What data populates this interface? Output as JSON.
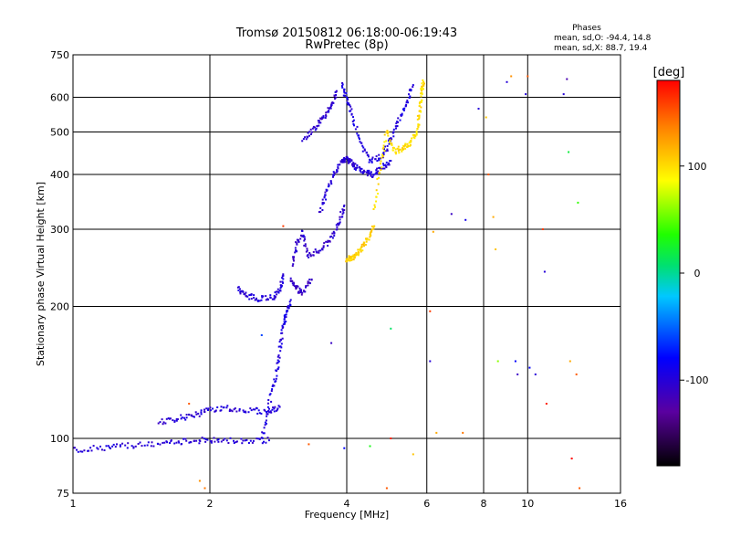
{
  "chart_data": {
    "type": "scatter",
    "title": "Tromsø 20150812 06:18:00-06:19:43",
    "subtitle": "RwPretec (8p)",
    "xlabel": "Frequency [MHz]",
    "ylabel": "Stationary phase Virtual Height [km]",
    "x_scale": "log",
    "y_scale": "log",
    "xlim": [
      1,
      16
    ],
    "ylim": [
      75,
      750
    ],
    "x_ticks": [
      1,
      2,
      4,
      6,
      8,
      10,
      16
    ],
    "y_ticks": [
      75,
      100,
      200,
      300,
      400,
      500,
      600,
      750
    ],
    "grid": true,
    "annotation": {
      "heading": "Phases",
      "line_o": "mean, sd,O: -94.4, 14.8",
      "line_x": "mean, sd,X:  88.7, 19.4"
    },
    "colorbar": {
      "label": "[deg]",
      "ticks": [
        100,
        0,
        -100
      ],
      "range": [
        -180,
        180
      ]
    },
    "series": [
      {
        "traces": [
          {
            "f": [
              1.0,
              1.15,
              1.3,
              1.5,
              1.7,
              1.9,
              2.1,
              2.4,
              2.7
            ],
            "h": [
              94,
              95,
              96,
              97,
              98,
              99,
              99,
              99,
              99
            ],
            "phase": -100
          },
          {
            "f": [
              1.55,
              1.7,
              1.85,
              2.0,
              2.2,
              2.45,
              2.7,
              2.85
            ],
            "h": [
              109,
              111,
              113,
              116,
              117,
              116,
              115,
              118
            ],
            "phase": -100
          },
          {
            "f": [
              2.3,
              2.4,
              2.55,
              2.75,
              2.85,
              2.9
            ],
            "h": [
              220,
              212,
              208,
              210,
              218,
              235
            ],
            "phase": -100
          },
          {
            "f": [
              2.6,
              2.7,
              2.8,
              2.85,
              2.9,
              2.95,
              3.0
            ],
            "h": [
              100,
              120,
              140,
              160,
              180,
              195,
              205
            ],
            "phase": -95
          },
          {
            "f": [
              3.05,
              3.1,
              3.2,
              3.3,
              3.5,
              3.7,
              3.85,
              3.95
            ],
            "h": [
              250,
              275,
              295,
              260,
              270,
              285,
              310,
              340
            ],
            "phase": -105
          },
          {
            "f": [
              3.0,
              3.1,
              3.2,
              3.35
            ],
            "h": [
              230,
              220,
              215,
              230
            ],
            "phase": -110
          },
          {
            "f": [
              3.5,
              3.6,
              3.75,
              3.9,
              4.0,
              4.1,
              4.2,
              4.4,
              4.55,
              4.75,
              5.0
            ],
            "h": [
              330,
              360,
              400,
              430,
              435,
              425,
              415,
              405,
              400,
              410,
              430
            ],
            "phase": -100
          },
          {
            "f": [
              3.2,
              3.4,
              3.55,
              3.7,
              3.8
            ],
            "h": [
              480,
              510,
              540,
              570,
              620
            ],
            "phase": -105
          },
          {
            "f": [
              3.9,
              4.0,
              4.1,
              4.3,
              4.5,
              4.8,
              5.0,
              5.2,
              5.4,
              5.6
            ],
            "h": [
              640,
              600,
              550,
              470,
              430,
              440,
              480,
              530,
              580,
              640
            ],
            "phase": -95
          }
        ]
      },
      {
        "traces": [
          {
            "f": [
              4.0,
              4.1,
              4.2,
              4.3,
              4.45,
              4.6
            ],
            "h": [
              255,
              258,
              262,
              270,
              285,
              305
            ],
            "phase": 105
          },
          {
            "f": [
              4.6,
              4.75,
              4.9,
              5.1,
              5.3,
              5.5,
              5.7,
              5.8,
              5.85,
              5.9
            ],
            "h": [
              330,
              420,
              500,
              450,
              460,
              470,
              500,
              560,
              620,
              650
            ],
            "phase": 100
          }
        ]
      }
    ],
    "scatter_points": [
      {
        "f": 1.8,
        "h": 120,
        "phase": 150
      },
      {
        "f": 1.9,
        "h": 80,
        "phase": 130
      },
      {
        "f": 1.95,
        "h": 77,
        "phase": 140
      },
      {
        "f": 2.6,
        "h": 172,
        "phase": -60
      },
      {
        "f": 2.9,
        "h": 305,
        "phase": 160
      },
      {
        "f": 3.3,
        "h": 97,
        "phase": 150
      },
      {
        "f": 3.7,
        "h": 165,
        "phase": -110
      },
      {
        "f": 3.95,
        "h": 95,
        "phase": -80
      },
      {
        "f": 4.5,
        "h": 96,
        "phase": 30
      },
      {
        "f": 4.9,
        "h": 77,
        "phase": 150
      },
      {
        "f": 5.0,
        "h": 100,
        "phase": 170
      },
      {
        "f": 5.0,
        "h": 178,
        "phase": 10
      },
      {
        "f": 5.6,
        "h": 92,
        "phase": 110
      },
      {
        "f": 6.1,
        "h": 150,
        "phase": -100
      },
      {
        "f": 6.1,
        "h": 195,
        "phase": 160
      },
      {
        "f": 6.2,
        "h": 296,
        "phase": 120
      },
      {
        "f": 6.3,
        "h": 103,
        "phase": 120
      },
      {
        "f": 6.8,
        "h": 325,
        "phase": -110
      },
      {
        "f": 7.2,
        "h": 103,
        "phase": 140
      },
      {
        "f": 7.3,
        "h": 315,
        "phase": -90
      },
      {
        "f": 7.8,
        "h": 565,
        "phase": -100
      },
      {
        "f": 8.1,
        "h": 540,
        "phase": 110
      },
      {
        "f": 8.2,
        "h": 400,
        "phase": 150
      },
      {
        "f": 8.4,
        "h": 320,
        "phase": 120
      },
      {
        "f": 8.5,
        "h": 270,
        "phase": 110
      },
      {
        "f": 8.6,
        "h": 150,
        "phase": 60
      },
      {
        "f": 9.0,
        "h": 650,
        "phase": -100
      },
      {
        "f": 9.2,
        "h": 670,
        "phase": 130
      },
      {
        "f": 9.4,
        "h": 150,
        "phase": -80
      },
      {
        "f": 9.5,
        "h": 140,
        "phase": -110
      },
      {
        "f": 9.9,
        "h": 610,
        "phase": -100
      },
      {
        "f": 10.0,
        "h": 670,
        "phase": 150
      },
      {
        "f": 10.1,
        "h": 145,
        "phase": -80
      },
      {
        "f": 10.4,
        "h": 140,
        "phase": -100
      },
      {
        "f": 10.8,
        "h": 300,
        "phase": 160
      },
      {
        "f": 10.9,
        "h": 240,
        "phase": -100
      },
      {
        "f": 11.0,
        "h": 120,
        "phase": 170
      },
      {
        "f": 12.0,
        "h": 610,
        "phase": -100
      },
      {
        "f": 12.2,
        "h": 660,
        "phase": -120
      },
      {
        "f": 12.3,
        "h": 450,
        "phase": 20
      },
      {
        "f": 12.4,
        "h": 150,
        "phase": 120
      },
      {
        "f": 12.5,
        "h": 90,
        "phase": 180
      },
      {
        "f": 12.8,
        "h": 140,
        "phase": 150
      },
      {
        "f": 12.9,
        "h": 345,
        "phase": 40
      },
      {
        "f": 13.0,
        "h": 77,
        "phase": 150
      }
    ]
  }
}
